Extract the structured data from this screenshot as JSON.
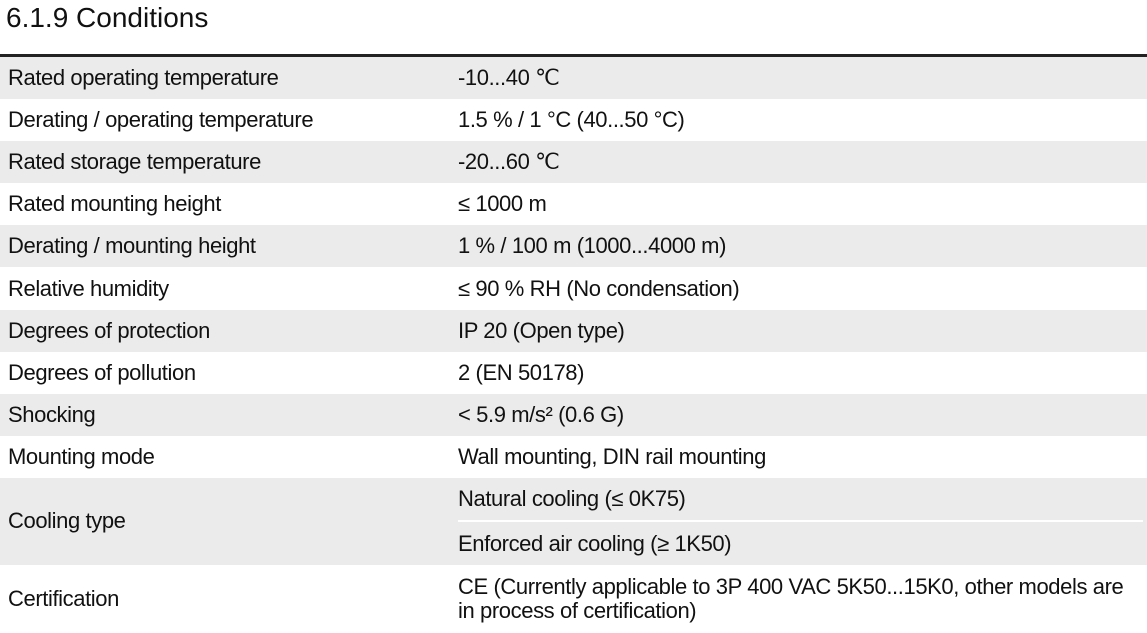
{
  "heading": "6.1.9  Conditions",
  "table": {
    "rows": [
      {
        "label": "Rated operating temperature",
        "values": [
          "-10...40 ℃"
        ]
      },
      {
        "label": "Derating / operating temperature",
        "values": [
          "1.5 % / 1 °C (40...50 °C)"
        ]
      },
      {
        "label": "Rated storage temperature",
        "values": [
          "-20...60 ℃"
        ]
      },
      {
        "label": "Rated mounting height",
        "values": [
          "≤ 1000 m"
        ]
      },
      {
        "label": "Derating / mounting height",
        "values": [
          "1 % / 100 m (1000...4000 m)"
        ]
      },
      {
        "label": "Relative humidity",
        "values": [
          "≤ 90 % RH (No condensation)"
        ]
      },
      {
        "label": "Degrees of protection",
        "values": [
          "IP 20 (Open type)"
        ]
      },
      {
        "label": "Degrees of pollution",
        "values": [
          "2 (EN 50178)"
        ]
      },
      {
        "label": "Shocking",
        "values": [
          "< 5.9 m/s² (0.6 G)"
        ]
      },
      {
        "label": "Mounting mode",
        "values": [
          "Wall mounting, DIN rail mounting"
        ]
      },
      {
        "label": "Cooling type",
        "values": [
          "Natural cooling (≤ 0K75)",
          "Enforced air cooling (≥ 1K50)"
        ]
      },
      {
        "label": "Certification",
        "values": [
          "CE (Currently applicable to 3P 400 VAC 5K50...15K0, other models are in process of certification)"
        ]
      }
    ]
  }
}
